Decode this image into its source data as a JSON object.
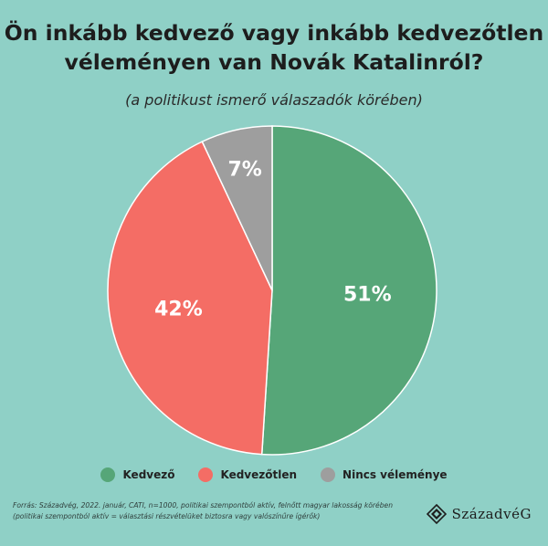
{
  "title_line1": "Ön inkább kedvező vagy inkább kedvezőtlen",
  "title_line2": "véleményen van Novák Katalinról?",
  "subtitle": "(a politikust ismerő válaszadók körében)",
  "footer_line1": "Forrás: Századvég, 2022. január, CATI, n=1000, politikai szempontból aktív, felnőtt magyar lakosság körében",
  "footer_line2": "(politikai szempontból aktív = választási részvételüket biztosra vagy valószínűre ígérők)",
  "brand": "SzázadvéG",
  "colors": {
    "background": "#8fd0c6"
  },
  "chart_data": {
    "type": "pie",
    "unit": "%",
    "legend_position": "bottom",
    "slices": [
      {
        "label": "Kedvező",
        "value": 51,
        "display": "51%",
        "color": "#56a678"
      },
      {
        "label": "Kedvezőtlen",
        "value": 42,
        "display": "42%",
        "color": "#f46d65"
      },
      {
        "label": "Nincs véleménye",
        "value": 7,
        "display": "7%",
        "color": "#9e9e9e"
      }
    ]
  }
}
